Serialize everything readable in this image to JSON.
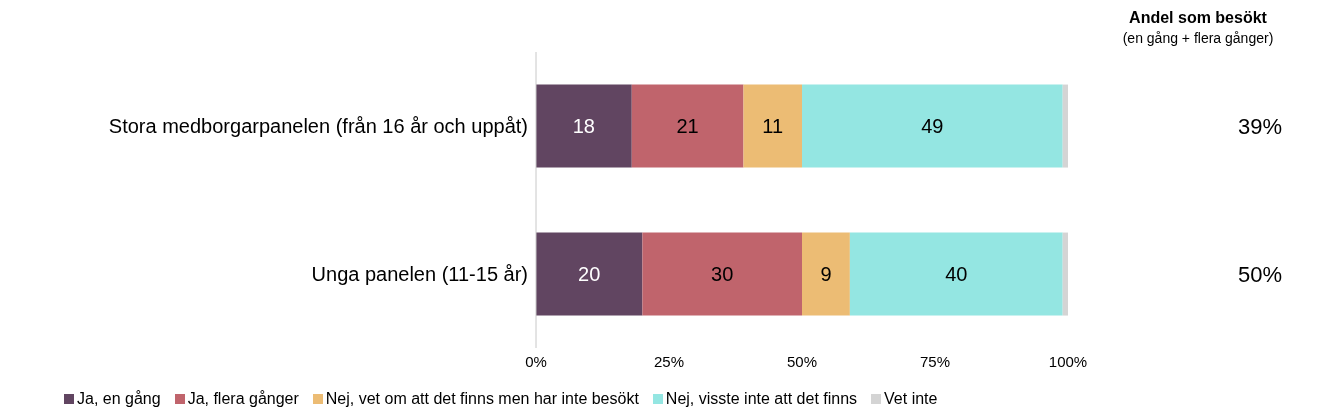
{
  "chart_data": {
    "type": "bar",
    "orientation": "horizontal",
    "stacked": true,
    "categories": [
      "Stora medborgarpanelen (från 16 år och uppåt)",
      "Unga panelen (11-15 år)"
    ],
    "series": [
      {
        "name": "Ja, en gång",
        "color": "#614561",
        "values": [
          18,
          20
        ],
        "value_labels": [
          "18",
          "20"
        ]
      },
      {
        "name": "Ja, flera gånger",
        "color": "#c0646c",
        "values": [
          21,
          30
        ],
        "value_labels": [
          "21",
          "30"
        ]
      },
      {
        "name": "Nej, vet om att det finns men har inte besökt",
        "color": "#ecbc74",
        "values": [
          11,
          9
        ],
        "value_labels": [
          "11",
          "9"
        ]
      },
      {
        "name": "Nej, visste inte att det finns",
        "color": "#94e6e2",
        "values": [
          49,
          40
        ],
        "value_labels": [
          "49",
          "40"
        ]
      },
      {
        "name": "Vet inte",
        "color": "#d4d4d4",
        "values": [
          1,
          1
        ],
        "value_labels": [
          null,
          null
        ]
      }
    ],
    "xlim": [
      0,
      100
    ],
    "xticks": [
      {
        "value": 0,
        "label": "0%"
      },
      {
        "value": 25,
        "label": "25%"
      },
      {
        "value": 50,
        "label": "50%"
      },
      {
        "value": 75,
        "label": "75%"
      },
      {
        "value": 100,
        "label": "100%"
      }
    ],
    "annotations": [
      "Andel som besökt",
      "(en gång + flera gånger)",
      "39%",
      "50%"
    ],
    "legend": "bottom"
  }
}
